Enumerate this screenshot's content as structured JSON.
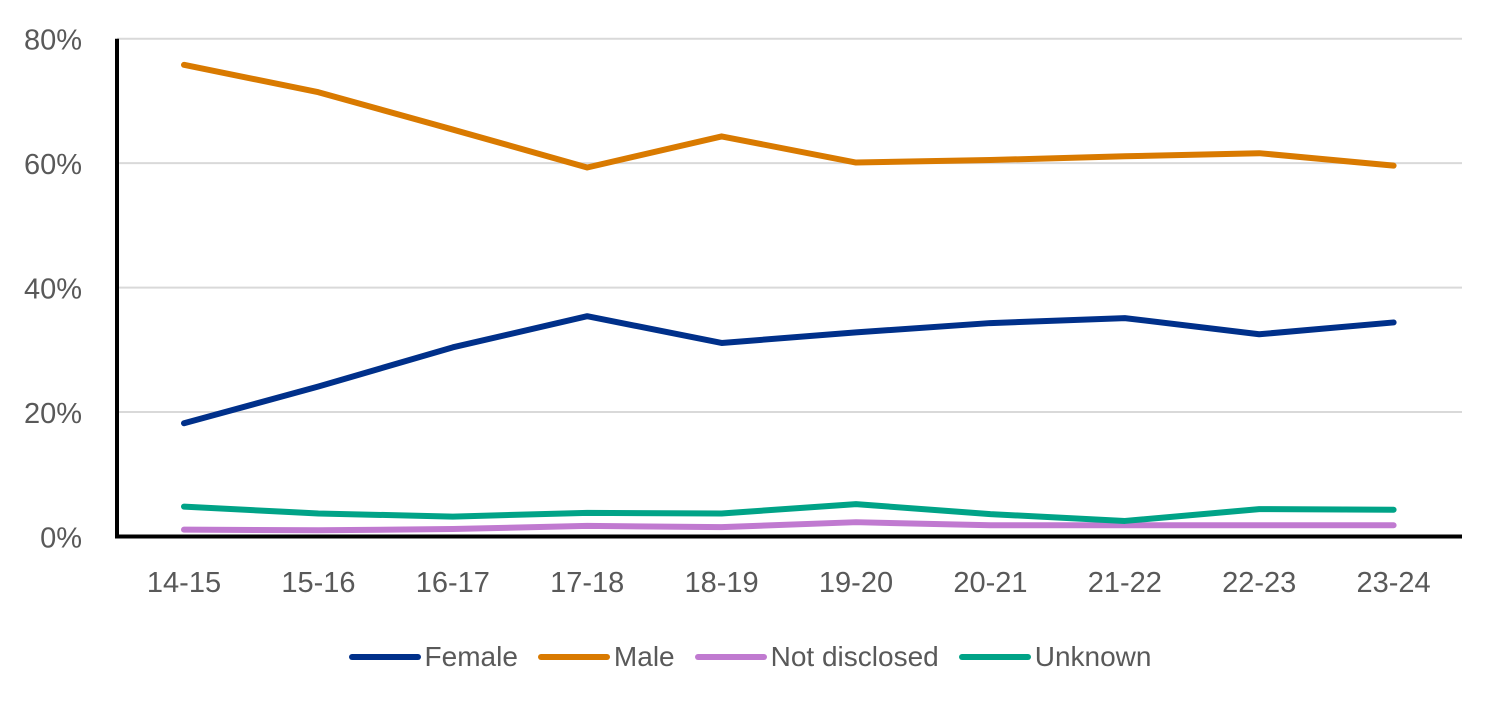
{
  "chart_data": {
    "type": "line",
    "title": "",
    "xlabel": "",
    "ylabel": "",
    "categories": [
      "14-15",
      "15-16",
      "16-17",
      "17-18",
      "18-19",
      "19-20",
      "20-21",
      "21-22",
      "22-23",
      "23-24"
    ],
    "ylim": [
      0,
      80
    ],
    "yticks": [
      0,
      20,
      40,
      60,
      80
    ],
    "ytick_labels": [
      "0%",
      "20%",
      "40%",
      "60%",
      "80%"
    ],
    "grid": true,
    "legend_position": "bottom",
    "series": [
      {
        "name": "Female",
        "color": "#00308A",
        "values": [
          18.2,
          24.1,
          30.4,
          35.4,
          31.1,
          32.8,
          34.3,
          35.1,
          32.5,
          34.4
        ]
      },
      {
        "name": "Male",
        "color": "#D97A00",
        "values": [
          75.8,
          71.4,
          65.4,
          59.3,
          64.3,
          60.1,
          60.5,
          61.1,
          61.6,
          59.6
        ]
      },
      {
        "name": "Not disclosed",
        "color": "#C07AD0",
        "values": [
          1.1,
          1.0,
          1.2,
          1.7,
          1.5,
          2.3,
          1.8,
          1.8,
          1.8,
          1.8
        ]
      },
      {
        "name": "Unknown",
        "color": "#00A387",
        "values": [
          4.8,
          3.7,
          3.2,
          3.8,
          3.7,
          5.2,
          3.6,
          2.5,
          4.4,
          4.3
        ]
      }
    ]
  }
}
